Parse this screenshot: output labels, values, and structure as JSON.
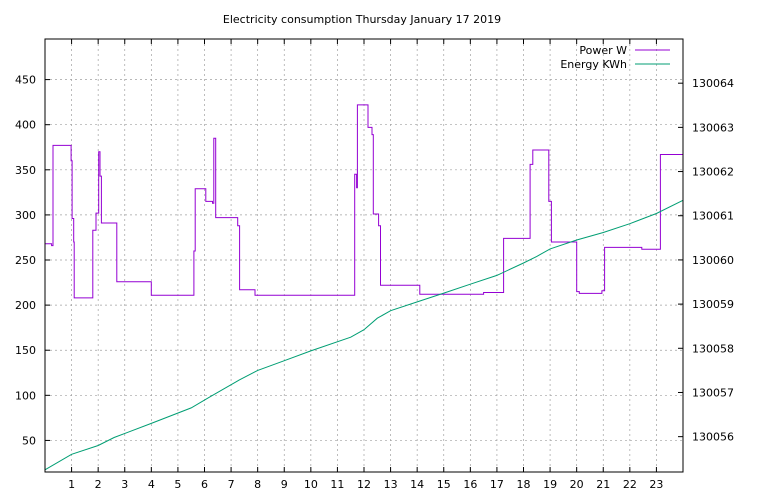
{
  "chart_data": {
    "type": "line",
    "title": "Electricity consumption Thursday January 17 2019",
    "xlabel": "",
    "ylabel": "",
    "xlim": [
      0,
      24
    ],
    "ylim": [
      15,
      495
    ],
    "y2lim": [
      130055.2,
      130065.0
    ],
    "grid": true,
    "legend_position": "top-right",
    "x_ticks": [
      "1",
      "2",
      "3",
      "4",
      "5",
      "6",
      "7",
      "8",
      "9",
      "10",
      "11",
      "12",
      "13",
      "14",
      "15",
      "16",
      "17",
      "18",
      "19",
      "20",
      "21",
      "22",
      "23"
    ],
    "y_ticks": [
      "50",
      "100",
      "150",
      "200",
      "250",
      "300",
      "350",
      "400",
      "450"
    ],
    "y2_ticks": [
      "130056",
      "130057",
      "130058",
      "130059",
      "130060",
      "130061",
      "130062",
      "130063",
      "130064"
    ],
    "series": [
      {
        "name": "Power W",
        "axis": "left",
        "step": true,
        "color": "#9400d3",
        "points": [
          [
            0.0,
            268
          ],
          [
            0.25,
            266
          ],
          [
            0.3,
            377
          ],
          [
            0.98,
            360
          ],
          [
            1.02,
            296
          ],
          [
            1.08,
            270
          ],
          [
            1.1,
            208
          ],
          [
            1.8,
            283
          ],
          [
            1.92,
            302
          ],
          [
            2.02,
            370
          ],
          [
            2.07,
            343
          ],
          [
            2.12,
            291
          ],
          [
            2.7,
            226
          ],
          [
            4.0,
            211
          ],
          [
            5.6,
            260
          ],
          [
            5.65,
            329
          ],
          [
            6.05,
            315
          ],
          [
            6.3,
            313
          ],
          [
            6.35,
            385
          ],
          [
            6.42,
            297
          ],
          [
            7.25,
            288
          ],
          [
            7.32,
            217
          ],
          [
            7.9,
            211
          ],
          [
            11.65,
            345
          ],
          [
            11.72,
            330
          ],
          [
            11.75,
            422
          ],
          [
            12.15,
            397
          ],
          [
            12.3,
            389
          ],
          [
            12.35,
            301
          ],
          [
            12.55,
            288
          ],
          [
            12.62,
            222
          ],
          [
            14.1,
            212
          ],
          [
            16.5,
            214
          ],
          [
            17.25,
            274
          ],
          [
            18.25,
            356
          ],
          [
            18.35,
            372
          ],
          [
            18.95,
            315
          ],
          [
            19.05,
            270
          ],
          [
            20.0,
            215
          ],
          [
            20.1,
            213
          ],
          [
            20.95,
            216
          ],
          [
            21.05,
            264
          ],
          [
            22.45,
            262
          ],
          [
            23.15,
            367
          ],
          [
            24.0,
            367
          ]
        ]
      },
      {
        "name": "Energy KWh",
        "axis": "right",
        "step": false,
        "color": "#009e73",
        "points": [
          [
            0.0,
            130055.25
          ],
          [
            1.0,
            130055.6
          ],
          [
            2.0,
            130055.8
          ],
          [
            2.6,
            130055.98
          ],
          [
            4.0,
            130056.3
          ],
          [
            5.5,
            130056.65
          ],
          [
            6.2,
            130056.9
          ],
          [
            7.3,
            130057.28
          ],
          [
            8.0,
            130057.5
          ],
          [
            9.0,
            130057.72
          ],
          [
            10.0,
            130057.94
          ],
          [
            11.5,
            130058.25
          ],
          [
            12.0,
            130058.42
          ],
          [
            12.5,
            130058.68
          ],
          [
            13.0,
            130058.85
          ],
          [
            14.0,
            130059.05
          ],
          [
            15.0,
            130059.25
          ],
          [
            16.0,
            130059.45
          ],
          [
            17.0,
            130059.65
          ],
          [
            18.0,
            130059.93
          ],
          [
            18.5,
            130060.08
          ],
          [
            19.0,
            130060.25
          ],
          [
            20.0,
            130060.45
          ],
          [
            21.0,
            130060.62
          ],
          [
            22.0,
            130060.82
          ],
          [
            23.0,
            130061.05
          ],
          [
            24.0,
            130061.35
          ]
        ]
      }
    ]
  }
}
